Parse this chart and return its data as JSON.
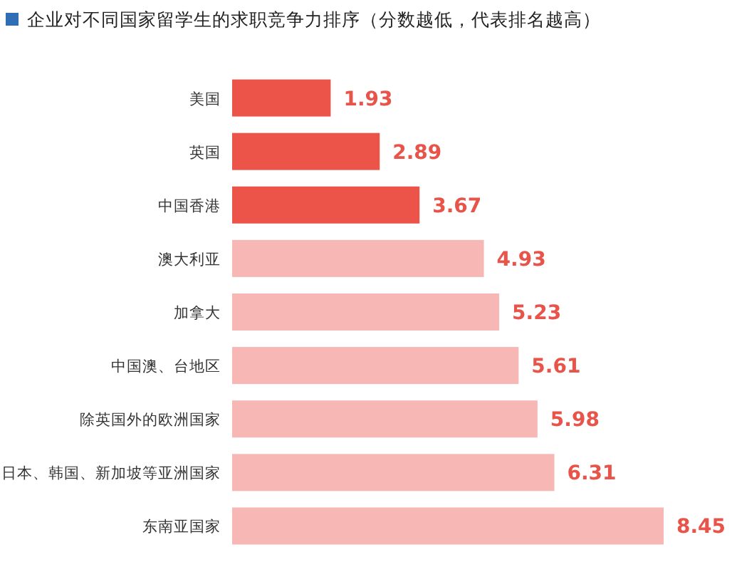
{
  "chart_data": {
    "type": "bar",
    "orientation": "horizontal",
    "title": "企业对不同国家留学生的求职竞争力排序（分数越低，代表排名越高）",
    "categories": [
      "美国",
      "英国",
      "中国香港",
      "澳大利亚",
      "加拿大",
      "中国澳、台地区",
      "除英国外的欧洲国家",
      "日本、韩国、新加坡等亚洲国家",
      "东南亚国家"
    ],
    "values": [
      1.93,
      2.89,
      3.67,
      4.93,
      5.23,
      5.61,
      5.98,
      6.31,
      8.45
    ],
    "colors": [
      "#ec5449",
      "#ec5449",
      "#ec5449",
      "#f7b7b4",
      "#f7b7b4",
      "#f7b7b4",
      "#f7b7b4",
      "#f7b7b4",
      "#f7b7b4"
    ],
    "data_labels": true
  }
}
